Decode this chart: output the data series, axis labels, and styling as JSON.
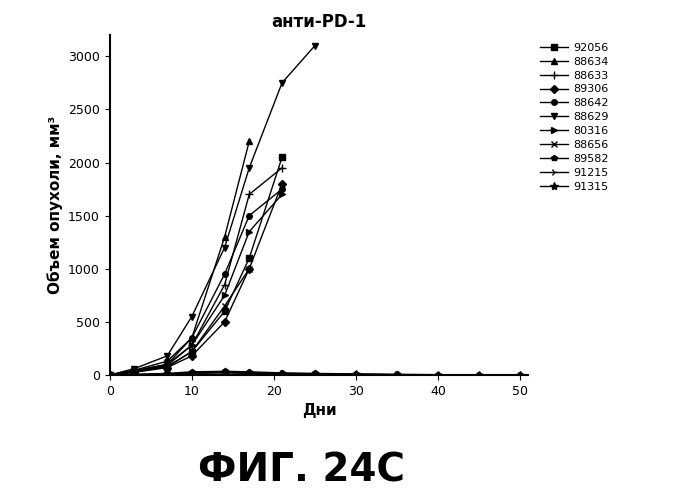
{
  "title": "анти-PD-1",
  "xlabel": "Дни",
  "ylabel": "Объем опухоли, мм³",
  "figcaption": "ФИГ. 24С",
  "xlim": [
    0,
    51
  ],
  "ylim": [
    0,
    3200
  ],
  "xticks": [
    0,
    10,
    20,
    30,
    40,
    50
  ],
  "yticks": [
    0,
    500,
    1000,
    1500,
    2000,
    2500,
    3000
  ],
  "series": [
    {
      "label": "92056",
      "marker": "s",
      "x": [
        0,
        3,
        7,
        10,
        14,
        17,
        21
      ],
      "y": [
        0,
        30,
        80,
        220,
        600,
        1100,
        2050
      ]
    },
    {
      "label": "88634",
      "marker": "^",
      "x": [
        0,
        3,
        7,
        10,
        14,
        17
      ],
      "y": [
        0,
        40,
        100,
        350,
        1300,
        2200
      ]
    },
    {
      "label": "88633",
      "marker": "+",
      "x": [
        0,
        3,
        7,
        10,
        14,
        17,
        21
      ],
      "y": [
        0,
        35,
        90,
        280,
        850,
        1700,
        1950
      ]
    },
    {
      "label": "89306",
      "marker": "D",
      "x": [
        0,
        3,
        7,
        10,
        14,
        17,
        21
      ],
      "y": [
        0,
        25,
        70,
        180,
        500,
        1000,
        1800
      ]
    },
    {
      "label": "88642",
      "marker": "o",
      "x": [
        0,
        3,
        7,
        10,
        14,
        17,
        21
      ],
      "y": [
        0,
        45,
        130,
        350,
        950,
        1500,
        1750
      ]
    },
    {
      "label": "88629",
      "marker": "v",
      "x": [
        0,
        3,
        7,
        10,
        14,
        17,
        21,
        25
      ],
      "y": [
        0,
        60,
        180,
        550,
        1200,
        1950,
        2750,
        3100
      ]
    },
    {
      "label": "80316",
      "marker": ">",
      "x": [
        0,
        3,
        7,
        10,
        14,
        17,
        21
      ],
      "y": [
        0,
        40,
        100,
        280,
        750,
        1350,
        1700
      ]
    },
    {
      "label": "88656",
      "marker": "x",
      "x": [
        0,
        3,
        7,
        10,
        14,
        17
      ],
      "y": [
        0,
        30,
        75,
        220,
        650,
        1000
      ]
    },
    {
      "label": "89582",
      "marker": "p",
      "x": [
        0,
        3,
        7,
        10,
        14,
        17,
        21,
        25,
        30,
        35,
        40,
        45,
        50
      ],
      "y": [
        0,
        5,
        15,
        30,
        35,
        30,
        20,
        15,
        10,
        5,
        3,
        2,
        2
      ]
    },
    {
      "label": "91215",
      "marker": "4",
      "x": [
        0,
        3,
        7,
        10,
        14,
        17,
        21,
        25,
        30,
        35,
        40,
        45,
        50
      ],
      "y": [
        0,
        5,
        10,
        20,
        25,
        20,
        15,
        10,
        8,
        5,
        3,
        2,
        2
      ]
    },
    {
      "label": "91315",
      "marker": "*",
      "x": [
        0,
        3,
        7,
        10,
        14,
        17,
        21,
        25,
        30,
        35,
        40,
        45,
        50
      ],
      "y": [
        0,
        3,
        8,
        15,
        20,
        15,
        10,
        8,
        5,
        3,
        2,
        2,
        2
      ]
    }
  ],
  "line_color": "#000000",
  "background_color": "#ffffff",
  "title_fontsize": 12,
  "axis_label_fontsize": 11,
  "tick_fontsize": 9,
  "legend_fontsize": 8,
  "caption_fontsize": 28
}
